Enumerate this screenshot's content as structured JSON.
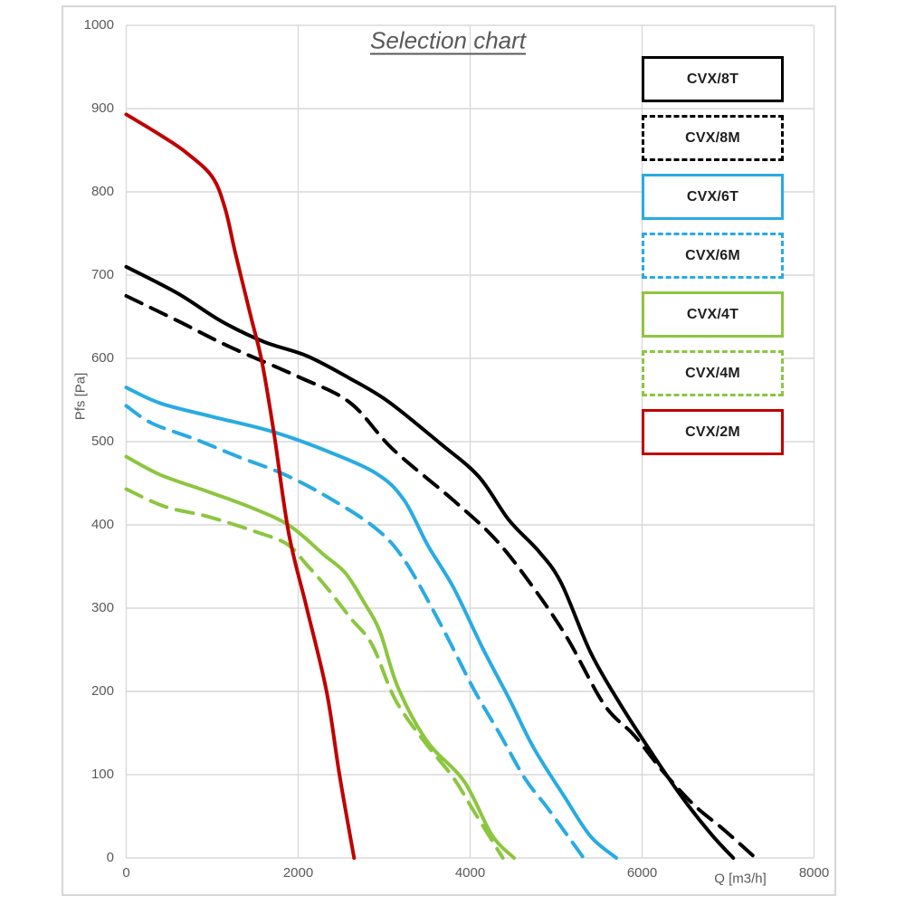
{
  "title": "Selection chart",
  "colors": {
    "grid": "#D9D9D9",
    "frame": "#D6D6D6",
    "axis_text": "#595959",
    "legend_text": "#1F1F1F",
    "black": "#000000",
    "blue": "#29ABE2",
    "green": "#8CC63F",
    "red": "#C00000"
  },
  "legend": {
    "items": [
      {
        "label": "CVX/8T",
        "color": "#000000",
        "dash": "solid"
      },
      {
        "label": "CVX/8M",
        "color": "#000000",
        "dash": "dashed"
      },
      {
        "label": "CVX/6T",
        "color": "#29ABE2",
        "dash": "solid"
      },
      {
        "label": "CVX/6M",
        "color": "#29ABE2",
        "dash": "dashed"
      },
      {
        "label": "CVX/4T",
        "color": "#8CC63F",
        "dash": "solid"
      },
      {
        "label": "CVX/4M",
        "color": "#8CC63F",
        "dash": "dashed"
      },
      {
        "label": "CVX/2M",
        "color": "#C00000",
        "dash": "solid"
      }
    ]
  },
  "chart_data": {
    "type": "line",
    "title": "Selection chart",
    "xlabel": "Q [m3/h]",
    "ylabel": "Pfs [Pa]",
    "xlim": [
      0,
      8000
    ],
    "ylim": [
      0,
      1000
    ],
    "x_ticks": [
      0,
      2000,
      4000,
      6000,
      8000
    ],
    "y_ticks": [
      0,
      100,
      200,
      300,
      400,
      500,
      600,
      700,
      800,
      900,
      1000
    ],
    "grid": true,
    "legend_position": "top-right",
    "series": [
      {
        "name": "CVX/8T",
        "color": "#000000",
        "dash": "solid",
        "points": [
          [
            0,
            710
          ],
          [
            600,
            678
          ],
          [
            1100,
            645
          ],
          [
            1600,
            620
          ],
          [
            2100,
            603
          ],
          [
            2600,
            576
          ],
          [
            3050,
            548
          ],
          [
            3650,
            498
          ],
          [
            4100,
            458
          ],
          [
            4450,
            406
          ],
          [
            4800,
            368
          ],
          [
            5060,
            330
          ],
          [
            5400,
            247
          ],
          [
            5750,
            184
          ],
          [
            6100,
            128
          ],
          [
            6450,
            75
          ],
          [
            6800,
            29
          ],
          [
            7060,
            0
          ]
        ]
      },
      {
        "name": "CVX/8M",
        "color": "#000000",
        "dash": "dashed",
        "points": [
          [
            0,
            675
          ],
          [
            600,
            645
          ],
          [
            1200,
            614
          ],
          [
            2000,
            578
          ],
          [
            2600,
            547
          ],
          [
            3100,
            491
          ],
          [
            3800,
            430
          ],
          [
            4300,
            382
          ],
          [
            4740,
            324
          ],
          [
            5130,
            264
          ],
          [
            5560,
            184
          ],
          [
            5910,
            147
          ],
          [
            6250,
            103
          ],
          [
            6610,
            63
          ],
          [
            6950,
            34
          ],
          [
            7320,
            0
          ]
        ]
      },
      {
        "name": "CVX/6T",
        "color": "#29ABE2",
        "dash": "solid",
        "points": [
          [
            0,
            565
          ],
          [
            400,
            546
          ],
          [
            1000,
            530
          ],
          [
            1700,
            512
          ],
          [
            2350,
            488
          ],
          [
            2920,
            461
          ],
          [
            3230,
            430
          ],
          [
            3510,
            375
          ],
          [
            3810,
            324
          ],
          [
            4150,
            251
          ],
          [
            4460,
            190
          ],
          [
            4740,
            132
          ],
          [
            5100,
            73
          ],
          [
            5400,
            26
          ],
          [
            5700,
            0
          ]
        ]
      },
      {
        "name": "CVX/6M",
        "color": "#29ABE2",
        "dash": "dashed",
        "points": [
          [
            0,
            543
          ],
          [
            300,
            522
          ],
          [
            800,
            503
          ],
          [
            1300,
            482
          ],
          [
            1830,
            461
          ],
          [
            2350,
            433
          ],
          [
            2900,
            396
          ],
          [
            3240,
            357
          ],
          [
            3660,
            280
          ],
          [
            4040,
            203
          ],
          [
            4350,
            148
          ],
          [
            4640,
            95
          ],
          [
            4900,
            60
          ],
          [
            5320,
            0
          ]
        ]
      },
      {
        "name": "CVX/4T",
        "color": "#8CC63F",
        "dash": "solid",
        "points": [
          [
            0,
            482
          ],
          [
            400,
            460
          ],
          [
            950,
            440
          ],
          [
            1450,
            421
          ],
          [
            1900,
            399
          ],
          [
            2300,
            364
          ],
          [
            2550,
            342
          ],
          [
            2760,
            308
          ],
          [
            2950,
            272
          ],
          [
            3160,
            205
          ],
          [
            3500,
            140
          ],
          [
            3930,
            92
          ],
          [
            4250,
            28
          ],
          [
            4510,
            0
          ]
        ]
      },
      {
        "name": "CVX/4M",
        "color": "#8CC63F",
        "dash": "dashed",
        "points": [
          [
            0,
            443
          ],
          [
            450,
            422
          ],
          [
            950,
            410
          ],
          [
            1500,
            392
          ],
          [
            1870,
            377
          ],
          [
            2100,
            352
          ],
          [
            2330,
            325
          ],
          [
            2610,
            288
          ],
          [
            2860,
            256
          ],
          [
            3130,
            190
          ],
          [
            3480,
            138
          ],
          [
            3800,
            97
          ],
          [
            4050,
            55
          ],
          [
            4380,
            0
          ]
        ]
      },
      {
        "name": "CVX/2M",
        "color": "#C00000",
        "dash": "solid",
        "points": [
          [
            0,
            893
          ],
          [
            400,
            868
          ],
          [
            700,
            847
          ],
          [
            1000,
            818
          ],
          [
            1150,
            780
          ],
          [
            1270,
            726
          ],
          [
            1450,
            650
          ],
          [
            1580,
            595
          ],
          [
            1720,
            509
          ],
          [
            1890,
            390
          ],
          [
            2100,
            300
          ],
          [
            2330,
            200
          ],
          [
            2480,
            100
          ],
          [
            2650,
            0
          ]
        ]
      }
    ]
  }
}
